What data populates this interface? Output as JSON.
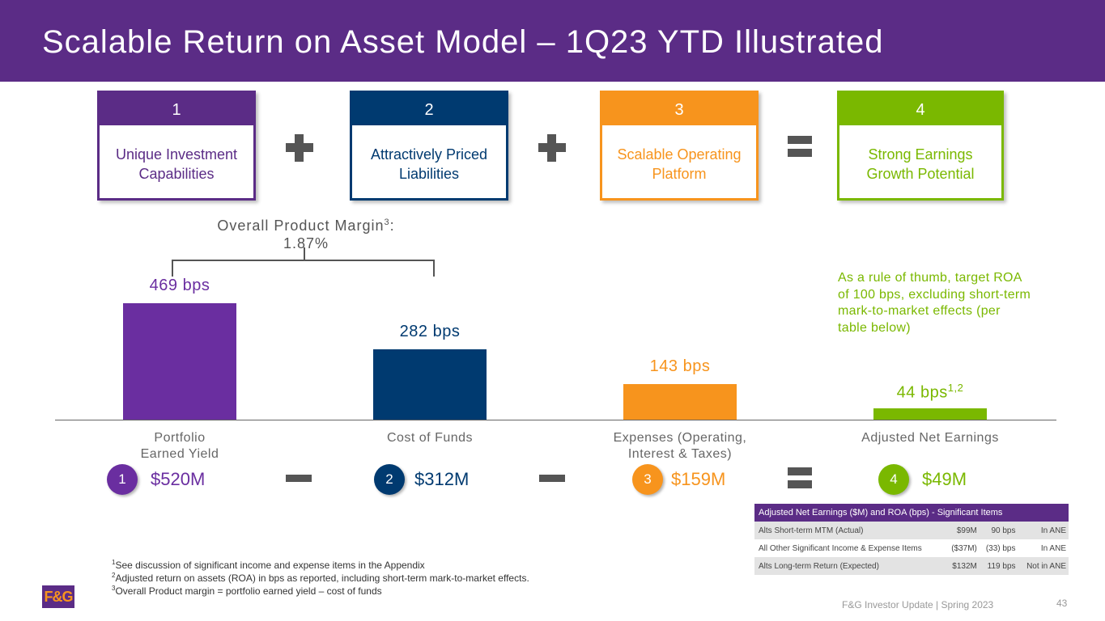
{
  "title": "Scalable Return on Asset Model – 1Q23 YTD Illustrated",
  "colors": {
    "purple": "#5b2c86",
    "bar_purple": "#6a2ea0",
    "navy": "#003a70",
    "orange": "#f7941d",
    "green": "#7ab800"
  },
  "cards": [
    {
      "number": "1",
      "label": "Unique Investment Capabilities"
    },
    {
      "number": "2",
      "label": "Attractively Priced Liabilities"
    },
    {
      "number": "3",
      "label": "Scalable Operating Platform"
    },
    {
      "number": "4",
      "label": "Strong Earnings Growth Potential"
    }
  ],
  "margin": {
    "label": "Overall Product Margin",
    "sup": "3",
    "suffix": ":",
    "value": "1.87%"
  },
  "chart_data": {
    "type": "bar",
    "categories": [
      "Portfolio Earned Yield",
      "Cost of Funds",
      "Expenses (Operating, Interest & Taxes)",
      "Adjusted Net Earnings"
    ],
    "values": [
      469,
      282,
      143,
      44
    ],
    "unit": "bps",
    "labels": [
      "469 bps",
      "282 bps",
      "143 bps",
      "44 bps"
    ],
    "label_sup": [
      "",
      "",
      "",
      "1,2"
    ]
  },
  "amounts": [
    {
      "number": "1",
      "value": "$520M"
    },
    {
      "number": "2",
      "value": "$312M"
    },
    {
      "number": "3",
      "value": "$159M"
    },
    {
      "number": "4",
      "value": "$49M"
    }
  ],
  "note": "As a rule of thumb, target ROA of 100 bps, excluding short-term mark-to-market effects (per table below)",
  "table": {
    "header": "Adjusted Net Earnings ($M) and ROA (bps)  - Significant Items",
    "rows": [
      {
        "item": "Alts Short-term MTM (Actual)",
        "amount": "$99M",
        "bps": "90 bps",
        "status": "In ANE"
      },
      {
        "item": "All Other Significant Income & Expense Items",
        "amount": "($37M)",
        "bps": "(33) bps",
        "status": "In ANE"
      },
      {
        "item": "Alts Long-term Return (Expected)",
        "amount": "$132M",
        "bps": "119 bps",
        "status": "Not in ANE"
      }
    ]
  },
  "footnotes": [
    {
      "sup": "1",
      "text": "See discussion of significant income and expense items in the Appendix"
    },
    {
      "sup": "2",
      "text": "Adjusted return on assets (ROA) in bps as reported, including short-term mark-to-market effects."
    },
    {
      "sup": "3",
      "text": "Overall Product margin = portfolio earned yield – cost of funds"
    }
  ],
  "logo": "F&G",
  "footer": "F&G Investor Update | Spring 2023",
  "page_number": "43"
}
